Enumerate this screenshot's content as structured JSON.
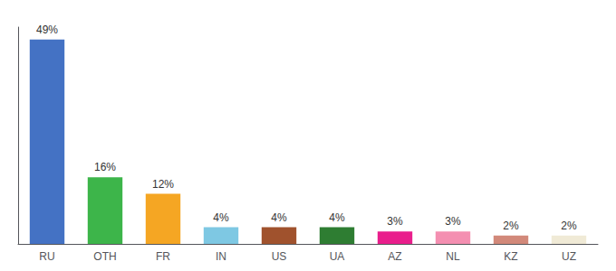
{
  "chart_data": {
    "type": "bar",
    "categories": [
      "RU",
      "OTH",
      "FR",
      "IN",
      "US",
      "UA",
      "AZ",
      "NL",
      "KZ",
      "UZ"
    ],
    "values": [
      49,
      16,
      12,
      4,
      4,
      4,
      3,
      3,
      2,
      2
    ],
    "value_labels": [
      "49%",
      "16%",
      "12%",
      "4%",
      "4%",
      "4%",
      "3%",
      "3%",
      "2%",
      "2%"
    ],
    "colors": [
      "#4472c4",
      "#3db54a",
      "#f5a623",
      "#7ec8e3",
      "#a0522d",
      "#2e7d32",
      "#e91e8c",
      "#f48fb1",
      "#d2897a",
      "#f0ead6"
    ],
    "data_labels": true,
    "ylim": [
      0,
      52
    ],
    "tick_labels": "x",
    "grid": false
  }
}
